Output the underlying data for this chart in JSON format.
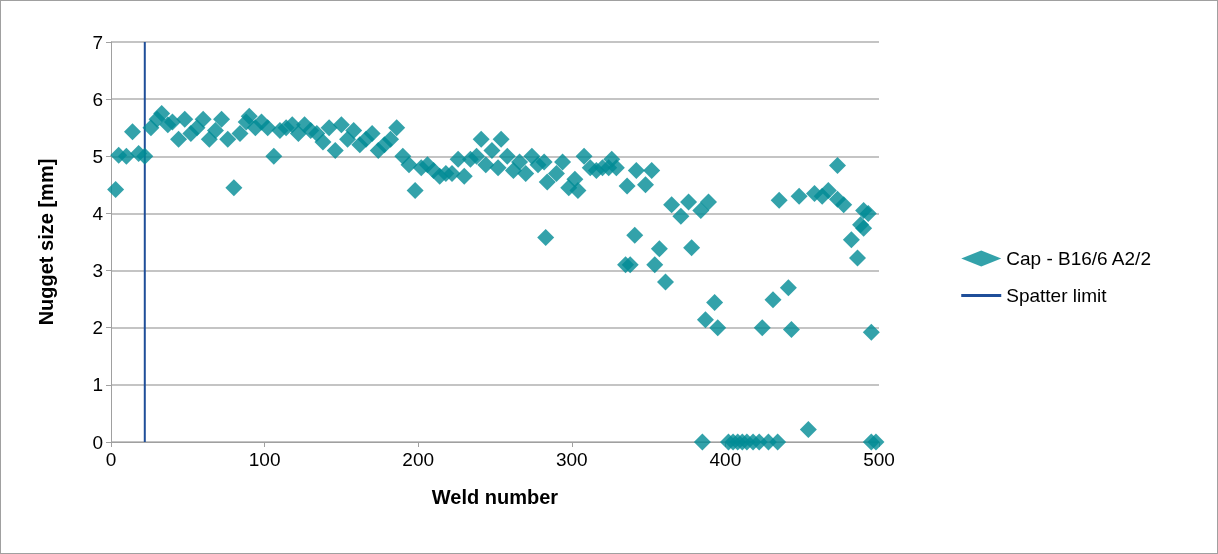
{
  "chart_data": {
    "type": "scatter",
    "xlabel": "Weld number",
    "ylabel": "Nugget size [mm]",
    "xlim": [
      0,
      500
    ],
    "xticks": [
      0,
      100,
      200,
      300,
      400,
      500
    ],
    "ylim": [
      0,
      7
    ],
    "yticks": [
      0,
      1,
      2,
      3,
      4,
      5,
      6,
      7
    ],
    "grid": "y",
    "legend": "right",
    "marker": "diamond",
    "series": [
      {
        "name": "Cap - B16/6 A2/2",
        "color": "#008b95",
        "x": [
          3,
          5,
          10,
          14,
          18,
          22,
          26,
          30,
          33,
          37,
          40,
          44,
          48,
          52,
          56,
          60,
          64,
          68,
          72,
          76,
          80,
          84,
          88,
          90,
          94,
          98,
          102,
          106,
          110,
          114,
          118,
          122,
          126,
          130,
          134,
          138,
          142,
          146,
          150,
          154,
          158,
          162,
          166,
          170,
          174,
          178,
          182,
          186,
          190,
          194,
          198,
          202,
          206,
          210,
          214,
          218,
          222,
          226,
          230,
          234,
          238,
          241,
          244,
          248,
          252,
          254,
          258,
          262,
          266,
          270,
          274,
          278,
          282,
          283,
          284,
          290,
          294,
          298,
          302,
          304,
          308,
          312,
          316,
          320,
          324,
          326,
          329,
          335,
          336,
          338,
          341,
          342,
          348,
          352,
          354,
          357,
          361,
          365,
          371,
          376,
          378,
          384,
          385,
          387,
          389,
          393,
          395,
          402,
          405,
          408,
          411,
          414,
          418,
          422,
          424,
          428,
          431,
          434,
          435,
          441,
          443,
          448,
          454,
          458,
          463,
          467,
          473,
          473,
          477,
          482,
          486,
          490,
          490,
          493,
          488,
          495
        ],
        "values": [
          4.42,
          5.02,
          5.0,
          5.43,
          5.05,
          5.0,
          5.5,
          5.65,
          5.75,
          5.55,
          5.6,
          5.3,
          5.65,
          5.4,
          5.5,
          5.65,
          5.3,
          5.45,
          5.65,
          5.3,
          4.45,
          5.4,
          5.6,
          5.7,
          5.5,
          5.6,
          5.5,
          5.0,
          5.45,
          5.5,
          5.55,
          5.4,
          5.55,
          5.45,
          5.4,
          5.25,
          5.5,
          5.1,
          5.55,
          5.3,
          5.45,
          5.2,
          5.3,
          5.4,
          5.1,
          5.2,
          5.3,
          5.5,
          5.0,
          4.85,
          4.4,
          4.8,
          4.85,
          4.75,
          4.65,
          4.7,
          4.7,
          4.95,
          4.65,
          4.95,
          5.0,
          5.3,
          4.85,
          5.1,
          4.8,
          5.3,
          5.0,
          4.75,
          4.9,
          4.7,
          5.0,
          4.85,
          4.9,
          3.58,
          4.55,
          4.7,
          4.9,
          4.45,
          4.6,
          4.4,
          5.0,
          4.8,
          4.75,
          4.8,
          4.8,
          4.95,
          4.8,
          3.1,
          4.48,
          3.1,
          3.62,
          4.75,
          4.5,
          4.75,
          3.1,
          3.38,
          2.8,
          4.15,
          3.95,
          4.2,
          3.4,
          4.05,
          0,
          2.14,
          4.2,
          2.44,
          2.0,
          0,
          0,
          0,
          0,
          0,
          0,
          0,
          2.0,
          0,
          2.49,
          0,
          4.23,
          2.7,
          1.97,
          4.3,
          0.22,
          4.35,
          4.3,
          4.4,
          4.84,
          4.25,
          4.15,
          3.54,
          3.22,
          3.74,
          4.05,
          4.0,
          3.8,
          1.92
        ]
      },
      {
        "color": "#008b95",
        "x": [
          495,
          498
        ],
        "values": [
          0,
          0
        ]
      },
      {
        "name": "Spatter limit",
        "type": "line",
        "color": "#1f4e99",
        "marker": "none",
        "x": [
          22,
          22
        ],
        "values": [
          0,
          7
        ]
      }
    ]
  }
}
